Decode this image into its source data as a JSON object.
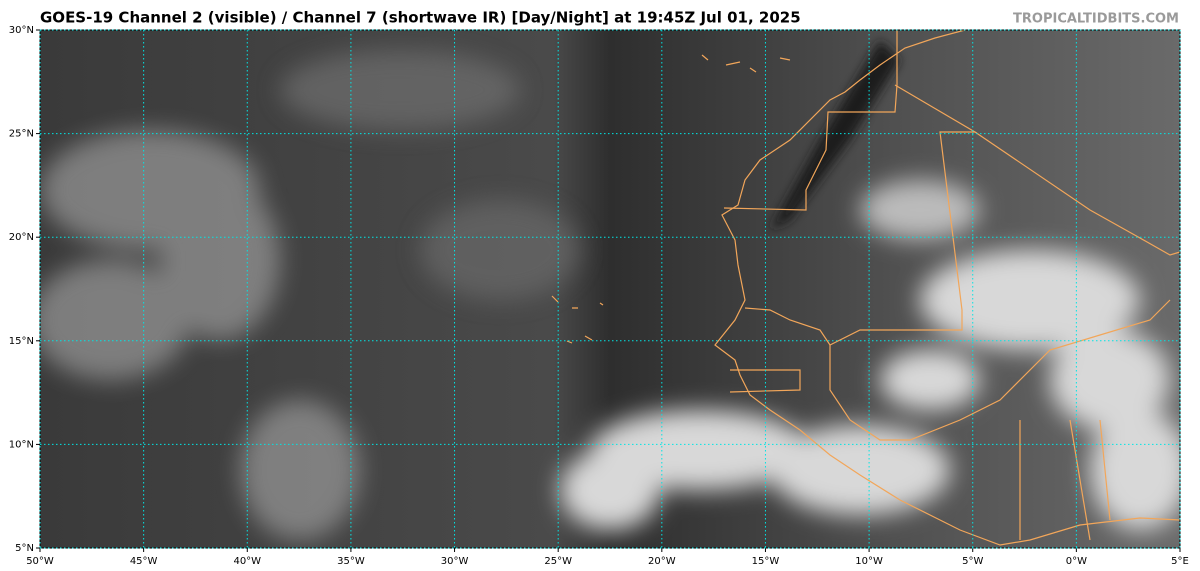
{
  "map": {
    "title": "GOES-19 Channel 2 (visible) / Channel 7 (shortwave IR) [Day/Night] at 19:45Z Jul 01, 2025",
    "credit": "TROPICALTIDBITS.COM",
    "xlim": [
      -50,
      5
    ],
    "ylim": [
      5,
      30
    ],
    "xticks": [
      {
        "value": -50,
        "label": "50°W"
      },
      {
        "value": -45,
        "label": "45°W"
      },
      {
        "value": -40,
        "label": "40°W"
      },
      {
        "value": -35,
        "label": "35°W"
      },
      {
        "value": -30,
        "label": "30°W"
      },
      {
        "value": -25,
        "label": "25°W"
      },
      {
        "value": -20,
        "label": "20°W"
      },
      {
        "value": -15,
        "label": "15°W"
      },
      {
        "value": -10,
        "label": "10°W"
      },
      {
        "value": -5,
        "label": "5°W"
      },
      {
        "value": 0,
        "label": "0°W"
      },
      {
        "value": 5,
        "label": "5°E"
      }
    ],
    "yticks": [
      {
        "value": 5,
        "label": "5°N"
      },
      {
        "value": 10,
        "label": "10°N"
      },
      {
        "value": 15,
        "label": "15°N"
      },
      {
        "value": 20,
        "label": "20°N"
      },
      {
        "value": 25,
        "label": "25°N"
      },
      {
        "value": 30,
        "label": "30°N"
      }
    ]
  }
}
